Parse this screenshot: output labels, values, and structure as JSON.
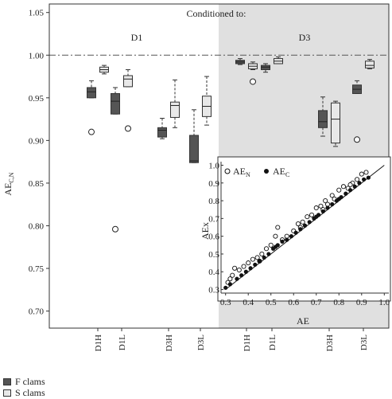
{
  "chart_data": [
    {
      "type": "box",
      "title": "Conditioned to:",
      "panels": [
        "D1",
        "D3"
      ],
      "ylabel_main": "AE",
      "ylabel_sub": "C,N",
      "ylim": [
        0.68,
        1.06
      ],
      "yticks": [
        "0.70",
        "0.75",
        "0.80",
        "0.85",
        "0.90",
        "0.95",
        "1.00",
        "1.05"
      ],
      "reference_line": 1.0,
      "categories": [
        "D1H",
        "D1L",
        "D3H",
        "D3L",
        "D1H",
        "D1L",
        "D3H",
        "D3L"
      ],
      "colors": {
        "F clams": "#555555",
        "S clams": "#e8e8e8",
        "shade": "#e0e0e0"
      },
      "series": [
        {
          "name": "F clams",
          "boxes": [
            {
              "panel": "D1",
              "category": "D1H",
              "whisker_low": 0.95,
              "q1": 0.95,
              "median": 0.957,
              "q3": 0.962,
              "whisker_high": 0.97,
              "outliers": [
                0.91
              ]
            },
            {
              "panel": "D1",
              "category": "D1L",
              "whisker_low": 0.931,
              "q1": 0.931,
              "median": 0.946,
              "q3": 0.955,
              "whisker_high": 0.962,
              "outliers": [
                0.796
              ]
            },
            {
              "panel": "D1",
              "category": "D3H",
              "whisker_low": 0.902,
              "q1": 0.904,
              "median": 0.912,
              "q3": 0.915,
              "whisker_high": 0.926,
              "outliers": []
            },
            {
              "panel": "D1",
              "category": "D3L",
              "whisker_low": 0.874,
              "q1": 0.874,
              "median": 0.876,
              "q3": 0.906,
              "whisker_high": 0.936,
              "outliers": []
            },
            {
              "panel": "D3",
              "category": "D1H",
              "whisker_low": 0.989,
              "q1": 0.99,
              "median": 0.992,
              "q3": 0.994,
              "whisker_high": 0.996,
              "outliers": []
            },
            {
              "panel": "D3",
              "category": "D1L",
              "whisker_low": 0.98,
              "q1": 0.983,
              "median": 0.986,
              "q3": 0.988,
              "whisker_high": 0.99,
              "outliers": []
            },
            {
              "panel": "D3",
              "category": "D3H",
              "whisker_low": 0.905,
              "q1": 0.915,
              "median": 0.922,
              "q3": 0.935,
              "whisker_high": 0.951,
              "outliers": []
            },
            {
              "panel": "D3",
              "category": "D3L",
              "whisker_low": 0.955,
              "q1": 0.955,
              "median": 0.96,
              "q3": 0.965,
              "whisker_high": 0.97,
              "outliers": [
                0.901
              ]
            }
          ]
        },
        {
          "name": "S clams",
          "boxes": [
            {
              "panel": "D1",
              "category": "D1H",
              "whisker_low": 0.978,
              "q1": 0.98,
              "median": 0.983,
              "q3": 0.986,
              "whisker_high": 0.988,
              "outliers": []
            },
            {
              "panel": "D1",
              "category": "D1L",
              "whisker_low": 0.963,
              "q1": 0.963,
              "median": 0.972,
              "q3": 0.976,
              "whisker_high": 0.983,
              "outliers": [
                0.914
              ]
            },
            {
              "panel": "D1",
              "category": "D3H",
              "whisker_low": 0.915,
              "q1": 0.927,
              "median": 0.941,
              "q3": 0.945,
              "whisker_high": 0.971,
              "outliers": []
            },
            {
              "panel": "D1",
              "category": "D3L",
              "whisker_low": 0.918,
              "q1": 0.928,
              "median": 0.94,
              "q3": 0.952,
              "whisker_high": 0.975,
              "outliers": []
            },
            {
              "panel": "D3",
              "category": "D1H",
              "whisker_low": 0.983,
              "q1": 0.984,
              "median": 0.987,
              "q3": 0.99,
              "whisker_high": 0.992,
              "outliers": [
                0.969
              ]
            },
            {
              "panel": "D3",
              "category": "D1L",
              "whisker_low": 0.99,
              "q1": 0.99,
              "median": 0.993,
              "q3": 0.996,
              "whisker_high": 0.998,
              "outliers": []
            },
            {
              "panel": "D3",
              "category": "D3H",
              "whisker_low": 0.893,
              "q1": 0.897,
              "median": 0.925,
              "q3": 0.944,
              "whisker_high": 0.946,
              "outliers": []
            },
            {
              "panel": "D3",
              "category": "D3L",
              "whisker_low": 0.984,
              "q1": 0.985,
              "median": 0.988,
              "q3": 0.993,
              "whisker_high": 0.995,
              "outliers": []
            }
          ]
        }
      ],
      "legend": [
        "F clams",
        "S clams"
      ]
    },
    {
      "type": "scatter",
      "xlabel": "AE",
      "ylabel": "AEx",
      "xlim": [
        0.28,
        1.02
      ],
      "ylim": [
        0.28,
        1.02
      ],
      "xticks": [
        "0.3",
        "0.4",
        "0.5",
        "0.6",
        "0.7",
        "0.8",
        "0.9",
        "1.0"
      ],
      "yticks": [
        "0.3",
        "0.4",
        "0.5",
        "0.6",
        "0.7",
        "0.8",
        "0.9",
        "1.0"
      ],
      "reference_line": "y=x",
      "legend_main": [
        "AE",
        "AE"
      ],
      "legend_sub": [
        "N",
        "C"
      ],
      "series": [
        {
          "marker": "open",
          "points": [
            [
              0.31,
              0.34
            ],
            [
              0.33,
              0.38
            ],
            [
              0.34,
              0.42
            ],
            [
              0.36,
              0.41
            ],
            [
              0.38,
              0.43
            ],
            [
              0.4,
              0.45
            ],
            [
              0.42,
              0.47
            ],
            [
              0.44,
              0.48
            ],
            [
              0.46,
              0.5
            ],
            [
              0.48,
              0.53
            ],
            [
              0.5,
              0.55
            ],
            [
              0.52,
              0.6
            ],
            [
              0.53,
              0.65
            ],
            [
              0.55,
              0.58
            ],
            [
              0.57,
              0.6
            ],
            [
              0.6,
              0.63
            ],
            [
              0.62,
              0.67
            ],
            [
              0.64,
              0.68
            ],
            [
              0.66,
              0.71
            ],
            [
              0.68,
              0.72
            ],
            [
              0.7,
              0.76
            ],
            [
              0.72,
              0.77
            ],
            [
              0.74,
              0.8
            ],
            [
              0.75,
              0.78
            ],
            [
              0.77,
              0.83
            ],
            [
              0.78,
              0.81
            ],
            [
              0.8,
              0.86
            ],
            [
              0.82,
              0.88
            ],
            [
              0.84,
              0.87
            ],
            [
              0.86,
              0.9
            ],
            [
              0.88,
              0.92
            ],
            [
              0.9,
              0.95
            ],
            [
              0.92,
              0.96
            ],
            [
              0.32,
              0.36
            ],
            [
              0.45,
              0.46
            ],
            [
              0.63,
              0.65
            ],
            [
              0.73,
              0.75
            ],
            [
              0.85,
              0.89
            ]
          ]
        },
        {
          "marker": "filled",
          "points": [
            [
              0.3,
              0.31
            ],
            [
              0.32,
              0.33
            ],
            [
              0.35,
              0.36
            ],
            [
              0.37,
              0.38
            ],
            [
              0.39,
              0.4
            ],
            [
              0.41,
              0.42
            ],
            [
              0.43,
              0.44
            ],
            [
              0.45,
              0.46
            ],
            [
              0.47,
              0.48
            ],
            [
              0.49,
              0.5
            ],
            [
              0.51,
              0.53
            ],
            [
              0.53,
              0.55
            ],
            [
              0.55,
              0.57
            ],
            [
              0.57,
              0.58
            ],
            [
              0.59,
              0.6
            ],
            [
              0.61,
              0.62
            ],
            [
              0.63,
              0.64
            ],
            [
              0.65,
              0.66
            ],
            [
              0.67,
              0.68
            ],
            [
              0.69,
              0.7
            ],
            [
              0.71,
              0.72
            ],
            [
              0.73,
              0.74
            ],
            [
              0.75,
              0.76
            ],
            [
              0.77,
              0.78
            ],
            [
              0.79,
              0.8
            ],
            [
              0.81,
              0.82
            ],
            [
              0.83,
              0.84
            ],
            [
              0.85,
              0.86
            ],
            [
              0.87,
              0.88
            ],
            [
              0.89,
              0.9
            ],
            [
              0.91,
              0.92
            ],
            [
              0.93,
              0.93
            ],
            [
              0.52,
              0.54
            ],
            [
              0.7,
              0.71
            ],
            [
              0.8,
              0.81
            ]
          ]
        }
      ]
    }
  ]
}
